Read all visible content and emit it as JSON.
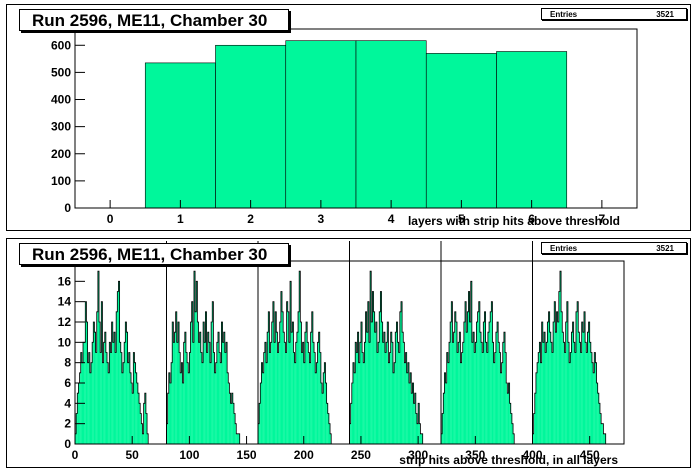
{
  "chart_data": [
    {
      "type": "bar",
      "title": "Run 2596, ME11, Chamber 30",
      "stats": {
        "label": "Entries",
        "value": "3521"
      },
      "xlabel": "layers with strip hits above threshold",
      "ylabel": "",
      "xlim": [
        -0.5,
        7.5
      ],
      "ylim": [
        0,
        660
      ],
      "xticks": [
        0,
        1,
        2,
        3,
        4,
        5,
        6,
        7
      ],
      "yticks": [
        0,
        100,
        200,
        300,
        400,
        500,
        600
      ],
      "categories": [
        0,
        1,
        2,
        3,
        4,
        5,
        6,
        7
      ],
      "values": [
        0,
        535,
        600,
        617,
        617,
        570,
        577,
        0
      ],
      "fill": "#00f79b"
    },
    {
      "type": "bar",
      "title": "Run 2596, ME11, Chamber 30",
      "stats": {
        "label": "Entries",
        "value": "3521"
      },
      "xlabel": "strip hits above threshold, in all layers",
      "ylabel": "",
      "xlim": [
        0,
        480
      ],
      "ylim": [
        0,
        18
      ],
      "xticks": [
        0,
        50,
        100,
        150,
        200,
        250,
        300,
        350,
        400,
        450
      ],
      "yticks": [
        0,
        2,
        4,
        6,
        8,
        10,
        12,
        14,
        16
      ],
      "layer_ranges": [
        [
          0,
          64
        ],
        [
          80,
          144
        ],
        [
          160,
          224
        ],
        [
          240,
          304
        ],
        [
          320,
          384
        ],
        [
          400,
          464
        ]
      ],
      "layer_boundaries": [
        80,
        160,
        240,
        320,
        400
      ],
      "series": [
        {
          "values": [
            1,
            3,
            5,
            6,
            7,
            9,
            8,
            10,
            10,
            14,
            12,
            8,
            9,
            7,
            8,
            10,
            12,
            11,
            9,
            13,
            17,
            12,
            9,
            14,
            8,
            10,
            11,
            9,
            8,
            7,
            10,
            9,
            12,
            10,
            11,
            9,
            13,
            15,
            16,
            10,
            9,
            7,
            8,
            10,
            12,
            11,
            8,
            9,
            7,
            6,
            5,
            9,
            8,
            7,
            6,
            5,
            4,
            3,
            2,
            1,
            4,
            5,
            3,
            1
          ]
        },
        {
          "values": [
            2,
            5,
            7,
            6,
            8,
            12,
            10,
            11,
            13,
            10,
            12,
            9,
            7,
            8,
            6,
            10,
            11,
            9,
            8,
            7,
            9,
            12,
            14,
            10,
            17,
            13,
            16,
            12,
            10,
            11,
            9,
            8,
            12,
            10,
            13,
            9,
            11,
            10,
            8,
            12,
            14,
            9,
            7,
            8,
            10,
            11,
            9,
            8,
            12,
            10,
            11,
            9,
            10,
            7,
            6,
            5,
            4,
            5,
            4,
            3,
            2,
            1,
            1,
            1
          ]
        },
        {
          "values": [
            2,
            4,
            6,
            8,
            7,
            9,
            10,
            8,
            11,
            13,
            9,
            10,
            12,
            14,
            10,
            13,
            11,
            9,
            10,
            12,
            15,
            13,
            11,
            10,
            9,
            14,
            13,
            10,
            16,
            11,
            12,
            9,
            8,
            10,
            11,
            13,
            17,
            12,
            9,
            10,
            8,
            11,
            12,
            10,
            9,
            8,
            11,
            13,
            10,
            9,
            7,
            8,
            10,
            11,
            9,
            6,
            5,
            7,
            8,
            6,
            4,
            3,
            2,
            1
          ]
        },
        {
          "values": [
            2,
            4,
            6,
            8,
            7,
            10,
            9,
            11,
            8,
            10,
            12,
            9,
            8,
            10,
            13,
            11,
            14,
            10,
            17,
            12,
            15,
            13,
            11,
            12,
            9,
            10,
            13,
            15,
            12,
            10,
            11,
            9,
            10,
            12,
            8,
            9,
            11,
            10,
            7,
            8,
            11,
            12,
            10,
            9,
            13,
            14,
            11,
            10,
            8,
            9,
            7,
            8,
            6,
            7,
            5,
            6,
            4,
            5,
            3,
            2,
            4,
            2,
            1,
            1
          ]
        },
        {
          "values": [
            1,
            3,
            5,
            7,
            6,
            9,
            8,
            10,
            12,
            14,
            10,
            11,
            13,
            12,
            9,
            10,
            11,
            8,
            9,
            10,
            12,
            14,
            11,
            13,
            15,
            12,
            16,
            10,
            11,
            9,
            10,
            12,
            13,
            14,
            11,
            10,
            9,
            12,
            13,
            10,
            9,
            11,
            12,
            13,
            14,
            10,
            8,
            9,
            11,
            12,
            10,
            9,
            7,
            8,
            10,
            11,
            9,
            6,
            5,
            6,
            4,
            3,
            2,
            1
          ]
        },
        {
          "values": [
            1,
            3,
            5,
            7,
            8,
            9,
            10,
            8,
            12,
            10,
            11,
            9,
            10,
            12,
            13,
            11,
            10,
            9,
            12,
            14,
            11,
            13,
            12,
            15,
            17,
            13,
            11,
            10,
            9,
            12,
            14,
            10,
            8,
            9,
            11,
            12,
            10,
            9,
            13,
            14,
            11,
            10,
            9,
            12,
            11,
            13,
            10,
            9,
            11,
            12,
            10,
            9,
            8,
            7,
            9,
            8,
            6,
            5,
            4,
            3,
            2,
            2,
            1,
            1
          ]
        }
      ],
      "fill": "#00f79b"
    }
  ]
}
